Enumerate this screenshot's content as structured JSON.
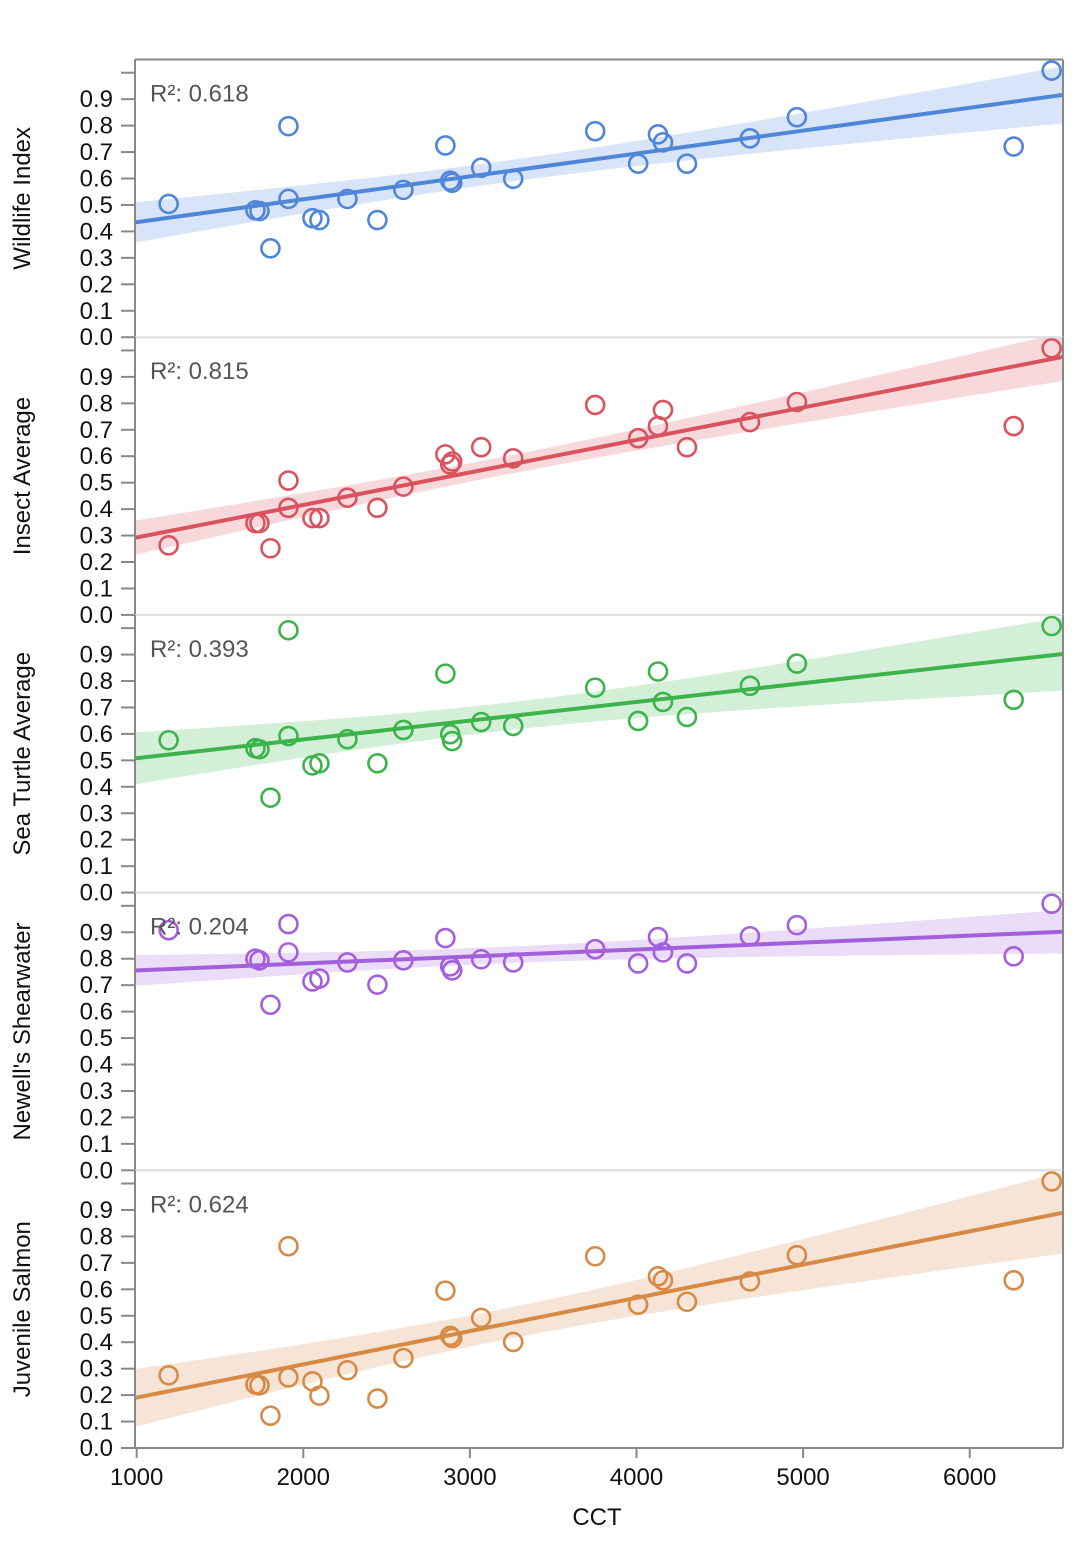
{
  "chart_data": {
    "type": "scatter",
    "xlabel": "CCT",
    "xlim": [
      990,
      6560
    ],
    "ylim": [
      0,
      1.05
    ],
    "x_ticks": [
      "1000",
      "2000",
      "3000",
      "4000",
      "5000",
      "6000"
    ],
    "x_tick_values": [
      1000,
      2000,
      3000,
      4000,
      5000,
      6000
    ],
    "y_ticks": [
      "0.0",
      "0.1",
      "0.2",
      "0.3",
      "0.4",
      "0.5",
      "0.6",
      "0.7",
      "0.8",
      "0.9"
    ],
    "x": [
      1192,
      1713,
      1737,
      1803,
      1911,
      1911,
      2055,
      2097,
      2265,
      2445,
      2601,
      2853,
      2882,
      2894,
      3068,
      3260,
      3752,
      4010,
      4129,
      4159,
      4303,
      4681,
      4963,
      6264,
      6492
    ],
    "series": [
      {
        "name": "Wildlife Index",
        "color": "#4f86d9",
        "r2_label": "R²: 0.618",
        "values": [
          0.504,
          0.48,
          0.477,
          0.336,
          0.798,
          0.523,
          0.45,
          0.443,
          0.523,
          0.443,
          0.557,
          0.725,
          0.592,
          0.584,
          0.641,
          0.599,
          0.779,
          0.656,
          0.767,
          0.737,
          0.656,
          0.752,
          0.832,
          0.721,
          1.008
        ]
      },
      {
        "name": "Insect Average",
        "color": "#d9535f",
        "r2_label": "R²: 0.815",
        "values": [
          0.263,
          0.347,
          0.347,
          0.252,
          0.508,
          0.405,
          0.366,
          0.366,
          0.443,
          0.405,
          0.485,
          0.607,
          0.569,
          0.58,
          0.634,
          0.592,
          0.794,
          0.668,
          0.714,
          0.775,
          0.634,
          0.729,
          0.805,
          0.714,
          1.008
        ]
      },
      {
        "name": "Sea Turtle Average",
        "color": "#3cb44b",
        "r2_label": "R²: 0.393",
        "values": [
          0.576,
          0.546,
          0.542,
          0.359,
          0.992,
          0.592,
          0.481,
          0.489,
          0.58,
          0.489,
          0.615,
          0.828,
          0.599,
          0.573,
          0.645,
          0.63,
          0.775,
          0.649,
          0.836,
          0.721,
          0.664,
          0.782,
          0.866,
          0.729,
          1.008
        ]
      },
      {
        "name": "Newell's Shearwater",
        "color": "#a45fdc",
        "r2_label": "R²: 0.204",
        "values": [
          0.908,
          0.8,
          0.794,
          0.626,
          0.931,
          0.824,
          0.714,
          0.725,
          0.786,
          0.702,
          0.794,
          0.878,
          0.771,
          0.756,
          0.798,
          0.786,
          0.836,
          0.782,
          0.882,
          0.824,
          0.782,
          0.885,
          0.927,
          0.809,
          1.008
        ]
      },
      {
        "name": "Juvenile Salmon",
        "color": "#d68a45",
        "r2_label": "R²: 0.624",
        "values": [
          0.275,
          0.24,
          0.237,
          0.122,
          0.763,
          0.267,
          0.252,
          0.198,
          0.294,
          0.187,
          0.34,
          0.595,
          0.424,
          0.416,
          0.492,
          0.401,
          0.725,
          0.542,
          0.649,
          0.634,
          0.553,
          0.63,
          0.729,
          0.634,
          1.008
        ]
      }
    ]
  }
}
